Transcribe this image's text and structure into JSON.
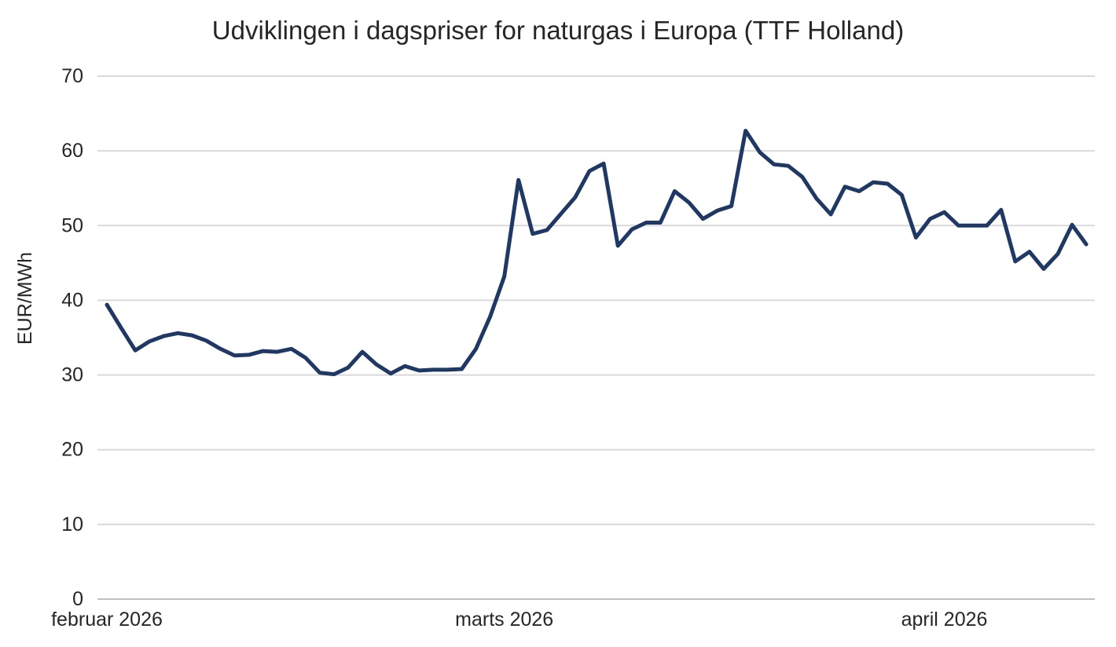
{
  "title": "Udviklingen i dagspriser for naturgas i Europa (TTF Holland)",
  "colors": {
    "line": "#1f3864",
    "grid": "#d9d9d9",
    "axis_line": "#c0c0c0",
    "text": "#262626",
    "background": "#ffffff"
  },
  "y_axis": {
    "label": "EUR/MWh",
    "min": 0,
    "max": 70,
    "ticks": [
      0,
      10,
      20,
      30,
      40,
      50,
      60,
      70
    ]
  },
  "x_axis": {
    "labels": [
      {
        "text": "februar 2026",
        "index": 0
      },
      {
        "text": "marts 2026",
        "index": 28
      },
      {
        "text": "april 2026",
        "index": 59
      }
    ]
  },
  "chart_data": {
    "type": "line",
    "title": "Udviklingen i dagspriser for naturgas i Europa (TTF Holland)",
    "xlabel": "",
    "ylabel": "EUR/MWh",
    "ylim": [
      0,
      70
    ],
    "grid": "horizontal",
    "legend": "none",
    "x_dates": [
      "2026-02-01",
      "2026-02-02",
      "2026-02-03",
      "2026-02-04",
      "2026-02-05",
      "2026-02-06",
      "2026-02-07",
      "2026-02-08",
      "2026-02-09",
      "2026-02-10",
      "2026-02-11",
      "2026-02-12",
      "2026-02-13",
      "2026-02-14",
      "2026-02-15",
      "2026-02-16",
      "2026-02-17",
      "2026-02-18",
      "2026-02-19",
      "2026-02-20",
      "2026-02-21",
      "2026-02-22",
      "2026-02-23",
      "2026-02-24",
      "2026-02-25",
      "2026-02-26",
      "2026-02-27",
      "2026-02-28",
      "2026-03-01",
      "2026-03-02",
      "2026-03-03",
      "2026-03-04",
      "2026-03-05",
      "2026-03-06",
      "2026-03-07",
      "2026-03-08",
      "2026-03-09",
      "2026-03-10",
      "2026-03-11",
      "2026-03-12",
      "2026-03-13",
      "2026-03-14",
      "2026-03-15",
      "2026-03-16",
      "2026-03-17",
      "2026-03-18",
      "2026-03-19",
      "2026-03-20",
      "2026-03-21",
      "2026-03-22",
      "2026-03-23",
      "2026-03-24",
      "2026-03-25",
      "2026-03-26",
      "2026-03-27",
      "2026-03-28",
      "2026-03-29",
      "2026-03-30",
      "2026-03-31",
      "2026-04-01",
      "2026-04-02",
      "2026-04-03",
      "2026-04-04",
      "2026-04-05",
      "2026-04-06",
      "2026-04-07",
      "2026-04-08",
      "2026-04-09",
      "2026-04-10",
      "2026-04-11"
    ],
    "series": [
      {
        "name": "TTF Holland dagspris",
        "color": "#1f3864",
        "values": [
          39.4,
          36.3,
          33.3,
          34.5,
          35.2,
          35.6,
          35.3,
          34.6,
          33.5,
          32.6,
          32.7,
          33.2,
          33.1,
          33.5,
          32.3,
          30.3,
          30.1,
          31.0,
          33.1,
          31.4,
          30.2,
          31.2,
          30.6,
          30.7,
          30.7,
          30.8,
          33.5,
          37.8,
          43.2,
          56.1,
          48.9,
          49.4,
          51.6,
          53.8,
          57.3,
          58.3,
          47.3,
          49.5,
          50.4,
          50.4,
          54.6,
          53.1,
          50.9,
          52.0,
          52.6,
          62.7,
          59.8,
          58.2,
          58.0,
          56.5,
          53.6,
          51.5,
          55.2,
          54.6,
          55.8,
          55.6,
          54.1,
          48.4,
          50.9,
          51.8,
          50.0,
          50.0,
          50.0,
          52.1,
          45.2,
          46.5,
          44.2,
          46.2,
          50.1,
          47.5
        ]
      }
    ]
  }
}
